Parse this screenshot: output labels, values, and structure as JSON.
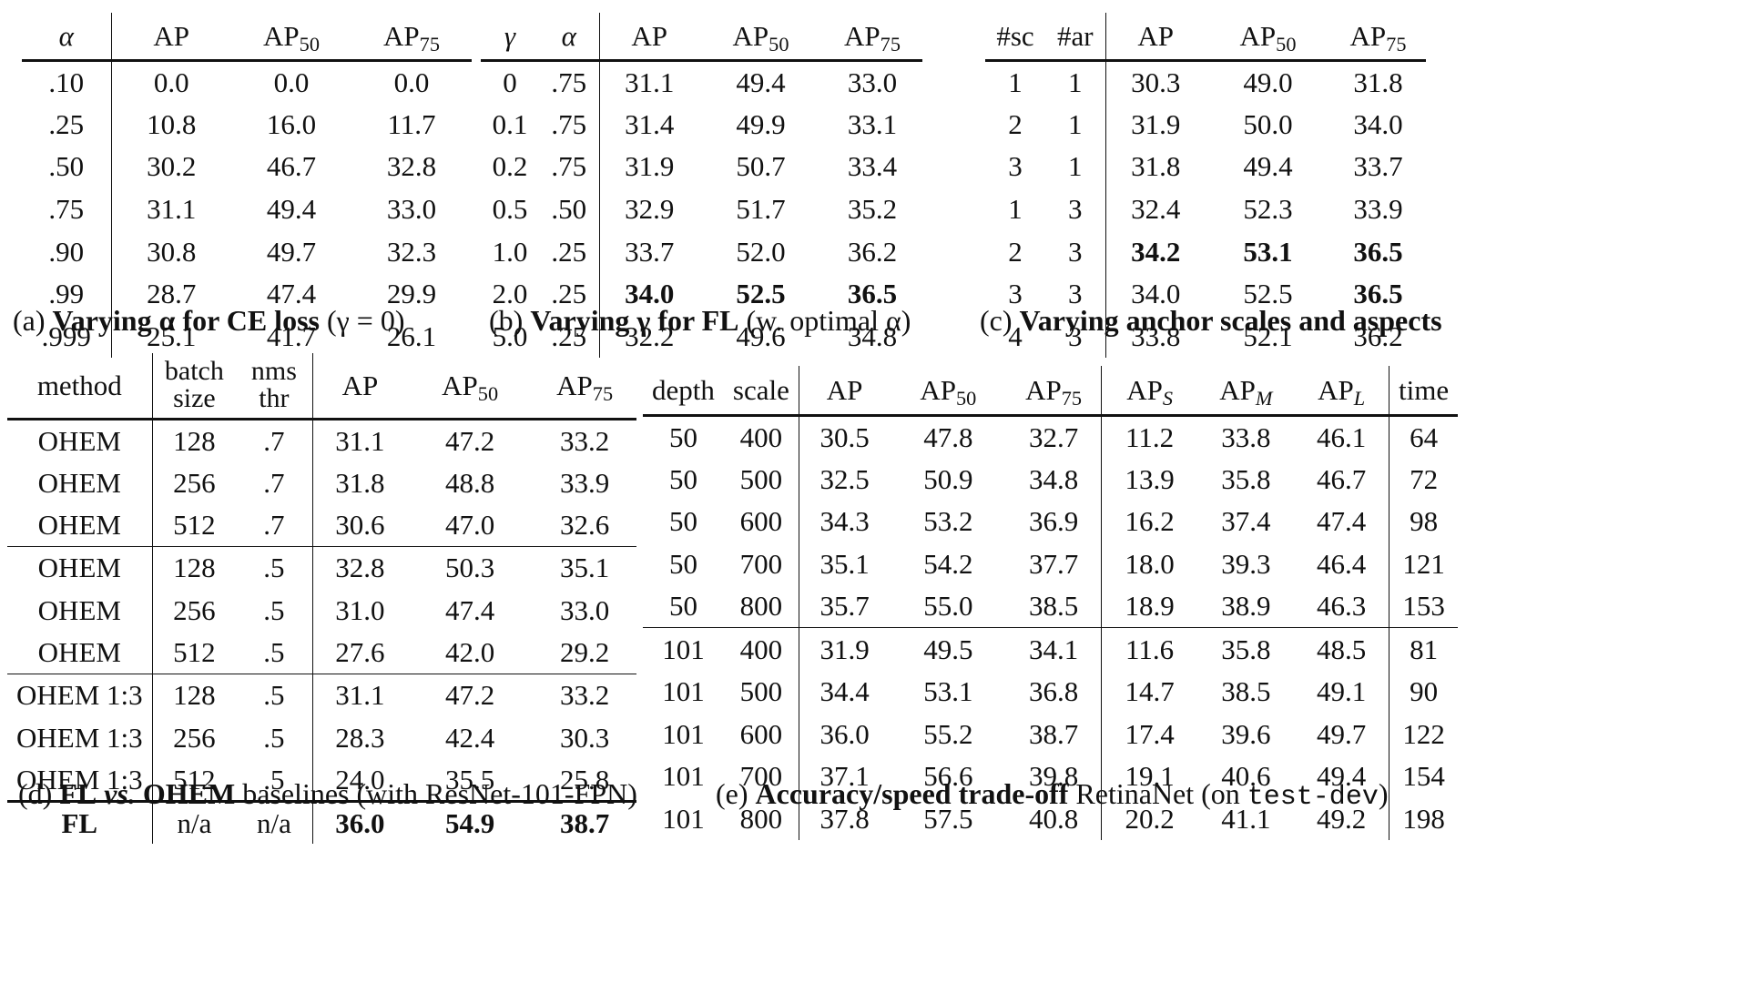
{
  "table_a": {
    "headers": [
      "α",
      "AP",
      "AP",
      "AP"
    ],
    "header_subs": [
      "",
      "",
      "50",
      "75"
    ],
    "rows": [
      [
        ".10",
        "0.0",
        "0.0",
        "0.0"
      ],
      [
        ".25",
        "10.8",
        "16.0",
        "11.7"
      ],
      [
        ".50",
        "30.2",
        "46.7",
        "32.8"
      ],
      [
        ".75",
        "31.1",
        "49.4",
        "33.0"
      ],
      [
        ".90",
        "30.8",
        "49.7",
        "32.3"
      ],
      [
        ".99",
        "28.7",
        "47.4",
        "29.9"
      ],
      [
        ".999",
        "25.1",
        "41.7",
        "26.1"
      ]
    ],
    "caption_label": "(a)",
    "caption_bold": "Varying α for CE loss",
    "caption_rest": "(γ = 0)"
  },
  "table_b": {
    "headers": [
      "γ",
      "α",
      "AP",
      "AP",
      "AP"
    ],
    "header_subs": [
      "",
      "",
      "",
      "50",
      "75"
    ],
    "rows": [
      [
        "0",
        ".75",
        "31.1",
        "49.4",
        "33.0"
      ],
      [
        "0.1",
        ".75",
        "31.4",
        "49.9",
        "33.1"
      ],
      [
        "0.2",
        ".75",
        "31.9",
        "50.7",
        "33.4"
      ],
      [
        "0.5",
        ".50",
        "32.9",
        "51.7",
        "35.2"
      ],
      [
        "1.0",
        ".25",
        "33.7",
        "52.0",
        "36.2"
      ],
      [
        "2.0",
        ".25",
        "34.0",
        "52.5",
        "36.5"
      ],
      [
        "5.0",
        ".25",
        "32.2",
        "49.6",
        "34.8"
      ]
    ],
    "caption_label": "(b)",
    "caption_bold": "Varying γ for FL",
    "caption_rest": "(w. optimal α)"
  },
  "table_c": {
    "headers": [
      "#sc",
      "#ar",
      "AP",
      "AP",
      "AP"
    ],
    "header_subs": [
      "",
      "",
      "",
      "50",
      "75"
    ],
    "rows": [
      [
        "1",
        "1",
        "30.3",
        "49.0",
        "31.8"
      ],
      [
        "2",
        "1",
        "31.9",
        "50.0",
        "34.0"
      ],
      [
        "3",
        "1",
        "31.8",
        "49.4",
        "33.7"
      ],
      [
        "1",
        "3",
        "32.4",
        "52.3",
        "33.9"
      ],
      [
        "2",
        "3",
        "34.2",
        "53.1",
        "36.5"
      ],
      [
        "3",
        "3",
        "34.0",
        "52.5",
        "36.5"
      ],
      [
        "4",
        "3",
        "33.8",
        "52.1",
        "36.2"
      ]
    ],
    "caption_label": "(c)",
    "caption_bold": "Varying anchor scales and aspects",
    "caption_rest": ""
  },
  "table_d": {
    "headers": [
      "method",
      "batch",
      "size",
      "nms",
      "thr",
      "AP",
      "AP",
      "AP"
    ],
    "header_subs": [
      "50",
      "75"
    ],
    "rows": [
      [
        "OHEM",
        "128",
        ".7",
        "31.1",
        "47.2",
        "33.2"
      ],
      [
        "OHEM",
        "256",
        ".7",
        "31.8",
        "48.8",
        "33.9"
      ],
      [
        "OHEM",
        "512",
        ".7",
        "30.6",
        "47.0",
        "32.6"
      ],
      [
        "OHEM",
        "128",
        ".5",
        "32.8",
        "50.3",
        "35.1"
      ],
      [
        "OHEM",
        "256",
        ".5",
        "31.0",
        "47.4",
        "33.0"
      ],
      [
        "OHEM",
        "512",
        ".5",
        "27.6",
        "42.0",
        "29.2"
      ],
      [
        "OHEM 1:3",
        "128",
        ".5",
        "31.1",
        "47.2",
        "33.2"
      ],
      [
        "OHEM 1:3",
        "256",
        ".5",
        "28.3",
        "42.4",
        "30.3"
      ],
      [
        "OHEM 1:3",
        "512",
        ".5",
        "24.0",
        "35.5",
        "25.8"
      ],
      [
        "FL",
        "n/a",
        "n/a",
        "36.0",
        "54.9",
        "38.7"
      ]
    ],
    "caption_label": "(d)",
    "caption_bold1": "FL",
    "caption_vs": "vs.",
    "caption_bold2": "OHEM",
    "caption_rest": "baselines (with ResNet-101-FPN)"
  },
  "table_e": {
    "headers": [
      "depth",
      "scale",
      "AP",
      "AP",
      "AP",
      "AP",
      "AP",
      "AP",
      "time"
    ],
    "header_subs": [
      "",
      "",
      "",
      "50",
      "75",
      "S",
      "M",
      "L",
      ""
    ],
    "rows": [
      [
        "50",
        "400",
        "30.5",
        "47.8",
        "32.7",
        "11.2",
        "33.8",
        "46.1",
        "64"
      ],
      [
        "50",
        "500",
        "32.5",
        "50.9",
        "34.8",
        "13.9",
        "35.8",
        "46.7",
        "72"
      ],
      [
        "50",
        "600",
        "34.3",
        "53.2",
        "36.9",
        "16.2",
        "37.4",
        "47.4",
        "98"
      ],
      [
        "50",
        "700",
        "35.1",
        "54.2",
        "37.7",
        "18.0",
        "39.3",
        "46.4",
        "121"
      ],
      [
        "50",
        "800",
        "35.7",
        "55.0",
        "38.5",
        "18.9",
        "38.9",
        "46.3",
        "153"
      ],
      [
        "101",
        "400",
        "31.9",
        "49.5",
        "34.1",
        "11.6",
        "35.8",
        "48.5",
        "81"
      ],
      [
        "101",
        "500",
        "34.4",
        "53.1",
        "36.8",
        "14.7",
        "38.5",
        "49.1",
        "90"
      ],
      [
        "101",
        "600",
        "36.0",
        "55.2",
        "38.7",
        "17.4",
        "39.6",
        "49.7",
        "122"
      ],
      [
        "101",
        "700",
        "37.1",
        "56.6",
        "39.8",
        "19.1",
        "40.6",
        "49.4",
        "154"
      ],
      [
        "101",
        "800",
        "37.8",
        "57.5",
        "40.8",
        "20.2",
        "41.1",
        "49.2",
        "198"
      ]
    ],
    "caption_label": "(e)",
    "caption_bold": "Accuracy/speed trade-off",
    "caption_rest": "RetinaNet (on",
    "caption_mono": "test-dev",
    "caption_close": ")"
  }
}
